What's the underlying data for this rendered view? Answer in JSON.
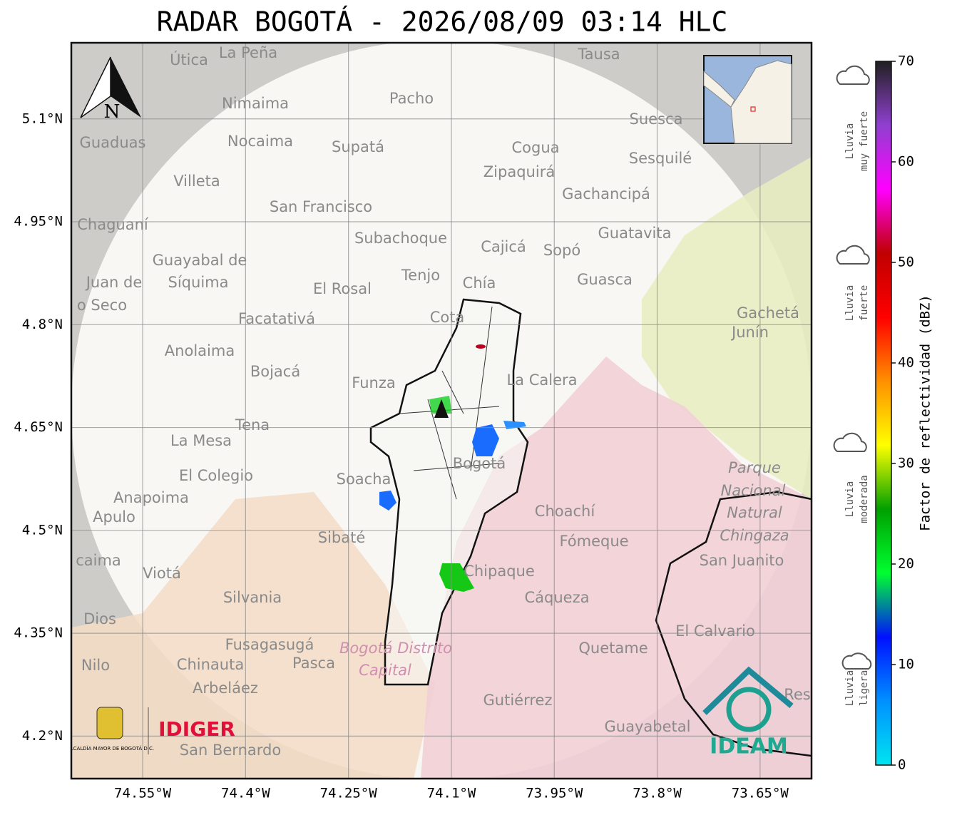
{
  "map": {
    "title": "RADAR BOGOTÁ - 2026/08/09 03:14 HLC",
    "xlim": [
      -74.654,
      -73.575
    ],
    "ylim": [
      4.138,
      5.211
    ],
    "lat_ticks": [
      {
        "value": 5.1,
        "label": "5.1°N"
      },
      {
        "value": 4.95,
        "label": "4.95°N"
      },
      {
        "value": 4.8,
        "label": "4.8°N"
      },
      {
        "value": 4.65,
        "label": "4.65°N"
      },
      {
        "value": 4.5,
        "label": "4.5°N"
      },
      {
        "value": 4.35,
        "label": "4.35°N"
      },
      {
        "value": 4.2,
        "label": "4.2°N"
      }
    ],
    "lon_ticks": [
      {
        "value": -74.55,
        "label": "74.55°W"
      },
      {
        "value": -74.4,
        "label": "74.4°W"
      },
      {
        "value": -74.25,
        "label": "74.25°W"
      },
      {
        "value": -74.1,
        "label": "74.1°W"
      },
      {
        "value": -73.95,
        "label": "73.95°W"
      },
      {
        "value": -73.8,
        "label": "73.8°W"
      },
      {
        "value": -73.65,
        "label": "73.65°W"
      }
    ],
    "places": [
      "La Peña",
      "Útica",
      "Tausa",
      "Pacho",
      "Nimaima",
      "Guaduas",
      "Nocaima",
      "Supatá",
      "Cogua",
      "Suesca",
      "Sesquilé",
      "Zipaquirá",
      "Villeta",
      "Gachancipá",
      "San Francisco",
      "Chaguaní",
      "Guatavita",
      "Subachoque",
      "Cajicá",
      "Sopó",
      "Guayabal de",
      "Síquima",
      "Tenjo",
      "Guasca",
      "Juan de",
      "El Rosal",
      "Chía",
      "o Seco",
      "Gachetá",
      "Junín",
      "Facatativá",
      "Cota",
      "Anolaima",
      "Bojacá",
      "Funza",
      "La Calera",
      "Tena",
      "La Mesa",
      "Bogotá",
      "Soacha",
      "El Colegio",
      "Anapoima",
      "Apulo",
      "Choachí",
      "Sibaté",
      "Fómeque",
      "San Juanito",
      "caima",
      "Viotá",
      "Chipaque",
      "Cáqueza",
      "Silvania",
      "Dios",
      "El Calvario",
      "Fusagasugá",
      "Quetame",
      "Nilo",
      "Chinauta",
      "Pasca",
      "Arbeláez",
      "Gutiérrez",
      "Res",
      "Guayabetal",
      "San Bernardo"
    ],
    "protected_area_labels": [
      "Parque",
      "Nacional",
      "Natural",
      "Chingaza"
    ],
    "district_labels": [
      "Bogotá Distrito",
      "Capital"
    ],
    "north_label": "N",
    "logos": {
      "alcaldia": "ALCALDÍA MAYOR DE BOGOTÁ D.C.",
      "idiger": "IDIGER",
      "ideam": "IDEAM"
    },
    "colorbar": {
      "label": "Factor de reflectividad (dBZ)",
      "lim": [
        0,
        70
      ],
      "ticks": [
        0,
        10,
        20,
        30,
        40,
        50,
        60,
        70
      ],
      "colors": [
        "#00e5f0",
        "#0090ff",
        "#0010ff",
        "#00ff30",
        "#00a000",
        "#ffff00",
        "#ff9000",
        "#ff0000",
        "#c00000",
        "#ff00ff",
        "#9040d0",
        "#202020"
      ]
    },
    "rain_categories": [
      [
        "Lluvia",
        "muy fuerte"
      ],
      [
        "Lluvia",
        "fuerte"
      ],
      [
        "Lluvia",
        "moderada"
      ],
      [
        "Lluvia",
        "ligera"
      ]
    ]
  }
}
